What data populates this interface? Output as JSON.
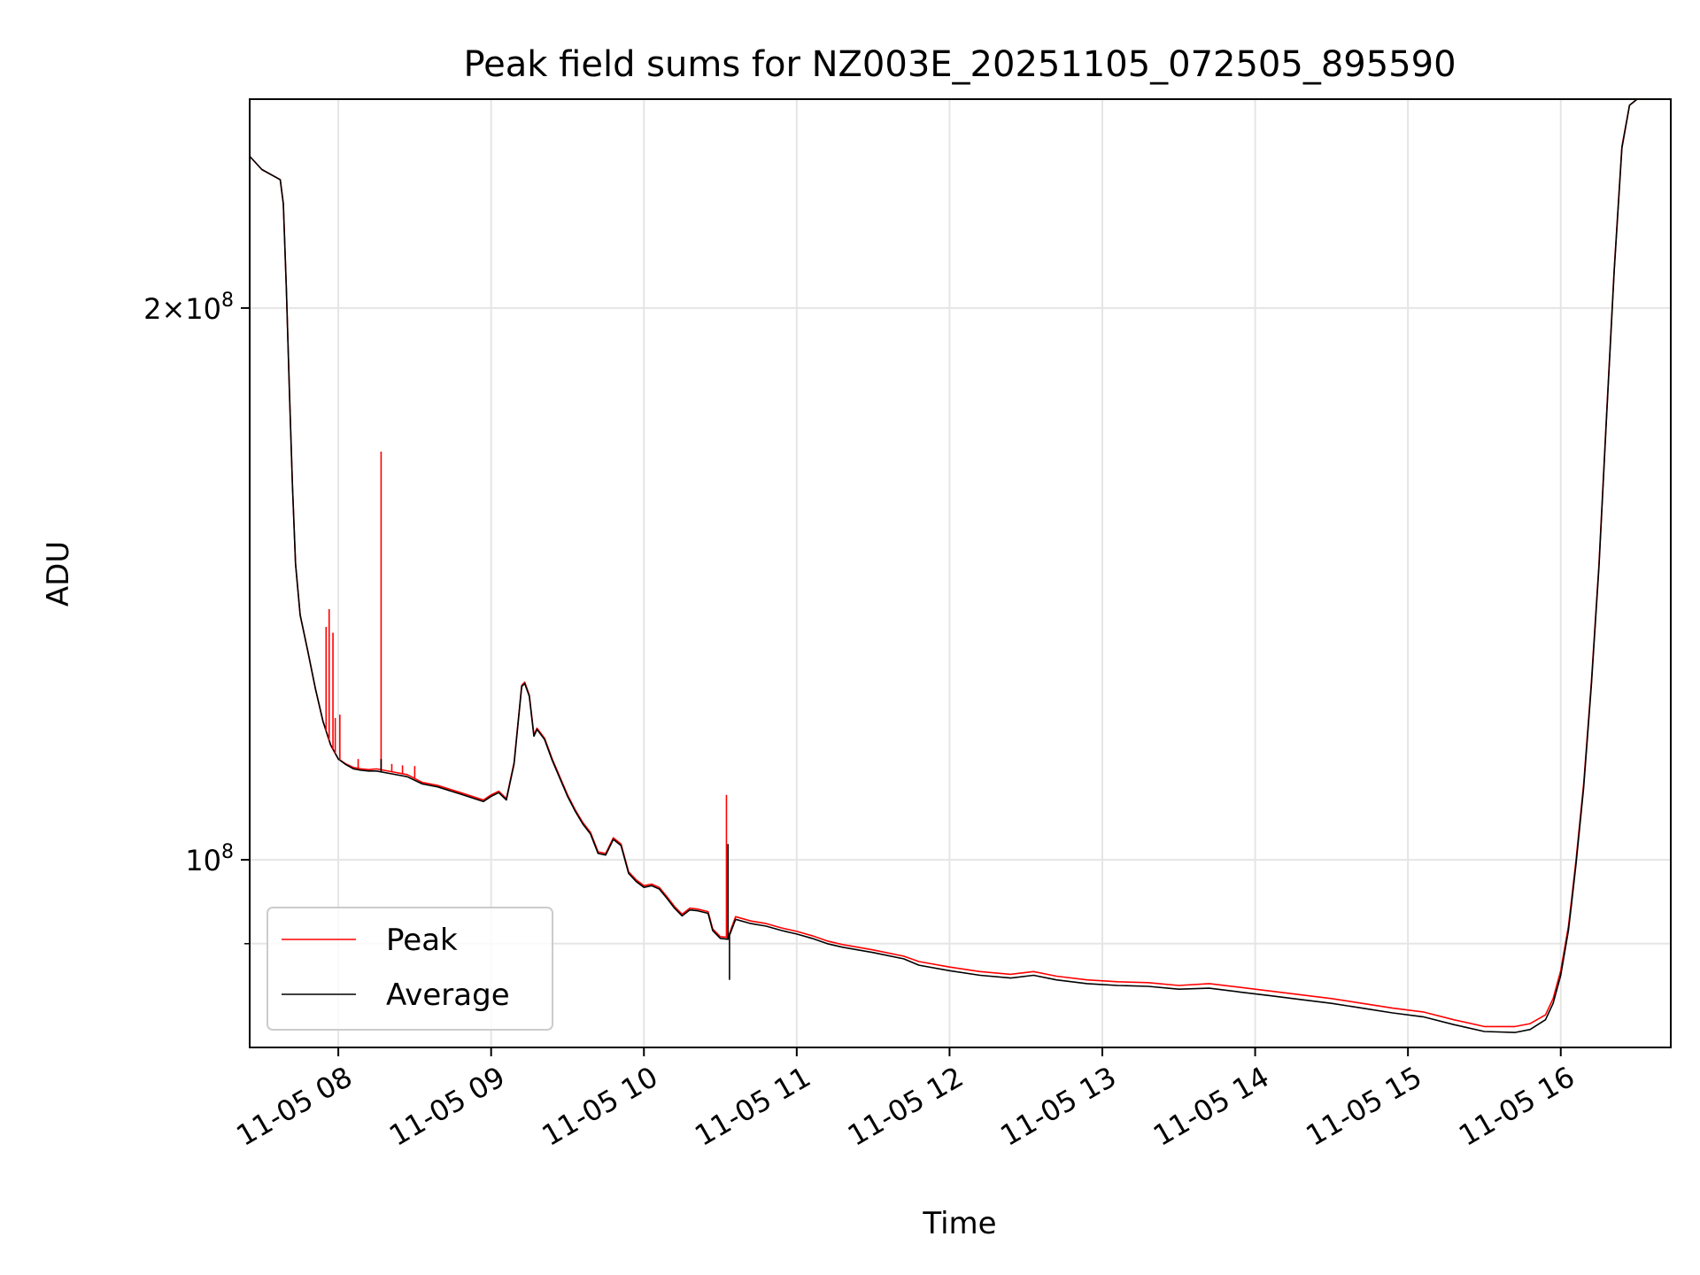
{
  "chart_data": {
    "type": "line",
    "title": "Peak field sums for NZ003E_20251105_072505_895590",
    "xlabel": "Time",
    "ylabel": "ADU",
    "x_tick_labels": [
      "11-05 08",
      "11-05 09",
      "11-05 10",
      "11-05 11",
      "11-05 12",
      "11-05 13",
      "11-05 14",
      "11-05 15",
      "11-05 16"
    ],
    "x_tick_hours": [
      8,
      9,
      10,
      11,
      12,
      13,
      14,
      15,
      16
    ],
    "xlim_hours": [
      7.42,
      16.72
    ],
    "y_scale": "log",
    "ylim": [
      79000000,
      260000000
    ],
    "y_major_ticks": [
      100000000,
      200000000
    ],
    "y_major_tick_labels": [
      {
        "mantissa": "",
        "base": "10",
        "exp": "8"
      },
      {
        "mantissa": "2×",
        "base": "10",
        "exp": "8"
      }
    ],
    "y_minor_ticks": [
      90000000
    ],
    "grid": true,
    "legend_position": "lower-left",
    "series": [
      {
        "name": "Peak",
        "color": "#ff0000",
        "points": [
          [
            7.42,
            242000000
          ],
          [
            7.5,
            238000000
          ],
          [
            7.62,
            235000000
          ],
          [
            7.64,
            228000000
          ],
          [
            7.66,
            205000000
          ],
          [
            7.68,
            180000000
          ],
          [
            7.7,
            160000000
          ],
          [
            7.72,
            145000000
          ],
          [
            7.75,
            136000000
          ],
          [
            7.8,
            130000000
          ],
          [
            7.85,
            124000000
          ],
          [
            7.9,
            119000000
          ],
          [
            7.95,
            115500000
          ],
          [
            8.0,
            113500000
          ],
          [
            8.05,
            112800000
          ],
          [
            8.1,
            112300000
          ],
          [
            8.15,
            112100000
          ],
          [
            8.2,
            112000000
          ],
          [
            8.25,
            112100000
          ],
          [
            8.35,
            111700000
          ],
          [
            8.45,
            111300000
          ],
          [
            8.55,
            110200000
          ],
          [
            8.65,
            109800000
          ],
          [
            8.8,
            108800000
          ],
          [
            8.95,
            107800000
          ],
          [
            9.0,
            108500000
          ],
          [
            9.05,
            109000000
          ],
          [
            9.1,
            108000000
          ],
          [
            9.15,
            113000000
          ],
          [
            9.2,
            124500000
          ],
          [
            9.22,
            125000000
          ],
          [
            9.25,
            123000000
          ],
          [
            9.28,
            117000000
          ],
          [
            9.3,
            118000000
          ],
          [
            9.35,
            116500000
          ],
          [
            9.4,
            113500000
          ],
          [
            9.5,
            108500000
          ],
          [
            9.55,
            106500000
          ],
          [
            9.6,
            104800000
          ],
          [
            9.65,
            103500000
          ],
          [
            9.7,
            101000000
          ],
          [
            9.75,
            100800000
          ],
          [
            9.8,
            102800000
          ],
          [
            9.85,
            102000000
          ],
          [
            9.9,
            98500000
          ],
          [
            9.95,
            97500000
          ],
          [
            10.0,
            96800000
          ],
          [
            10.05,
            97000000
          ],
          [
            10.1,
            96600000
          ],
          [
            10.15,
            95500000
          ],
          [
            10.2,
            94300000
          ],
          [
            10.25,
            93400000
          ],
          [
            10.3,
            94100000
          ],
          [
            10.35,
            94000000
          ],
          [
            10.42,
            93700000
          ],
          [
            10.45,
            91700000
          ],
          [
            10.5,
            90800000
          ],
          [
            10.55,
            90700000
          ],
          [
            10.6,
            93100000
          ],
          [
            10.7,
            92600000
          ],
          [
            10.8,
            92300000
          ],
          [
            10.9,
            91800000
          ],
          [
            11.0,
            91400000
          ],
          [
            11.1,
            90900000
          ],
          [
            11.2,
            90300000
          ],
          [
            11.3,
            89900000
          ],
          [
            11.5,
            89300000
          ],
          [
            11.7,
            88600000
          ],
          [
            11.8,
            88000000
          ],
          [
            12.0,
            87400000
          ],
          [
            12.2,
            86900000
          ],
          [
            12.4,
            86600000
          ],
          [
            12.55,
            86900000
          ],
          [
            12.7,
            86400000
          ],
          [
            12.9,
            86000000
          ],
          [
            13.1,
            85800000
          ],
          [
            13.3,
            85700000
          ],
          [
            13.5,
            85400000
          ],
          [
            13.7,
            85600000
          ],
          [
            13.9,
            85200000
          ],
          [
            14.1,
            84800000
          ],
          [
            14.3,
            84400000
          ],
          [
            14.5,
            84000000
          ],
          [
            14.7,
            83500000
          ],
          [
            14.9,
            83000000
          ],
          [
            15.1,
            82600000
          ],
          [
            15.3,
            81800000
          ],
          [
            15.5,
            81100000
          ],
          [
            15.7,
            81100000
          ],
          [
            15.8,
            81400000
          ],
          [
            15.9,
            82300000
          ],
          [
            15.95,
            84000000
          ],
          [
            16.0,
            87000000
          ],
          [
            16.05,
            92000000
          ],
          [
            16.07,
            95000000
          ],
          [
            16.1,
            100000000
          ],
          [
            16.15,
            110000000
          ],
          [
            16.2,
            125000000
          ],
          [
            16.25,
            145000000
          ],
          [
            16.3,
            175000000
          ],
          [
            16.35,
            210000000
          ],
          [
            16.4,
            245000000
          ],
          [
            16.45,
            258000000
          ],
          [
            16.5,
            260000000
          ],
          [
            16.72,
            260000000
          ]
        ]
      },
      {
        "name": "Average",
        "color": "#000000",
        "points": [
          [
            7.42,
            242000000
          ],
          [
            7.5,
            238000000
          ],
          [
            7.62,
            235000000
          ],
          [
            7.64,
            228000000
          ],
          [
            7.66,
            205000000
          ],
          [
            7.68,
            180000000
          ],
          [
            7.7,
            160000000
          ],
          [
            7.72,
            145000000
          ],
          [
            7.75,
            136000000
          ],
          [
            7.8,
            130000000
          ],
          [
            7.85,
            124000000
          ],
          [
            7.9,
            119000000
          ],
          [
            7.95,
            115500000
          ],
          [
            8.0,
            113500000
          ],
          [
            8.05,
            112700000
          ],
          [
            8.1,
            112100000
          ],
          [
            8.15,
            111900000
          ],
          [
            8.2,
            111800000
          ],
          [
            8.25,
            111800000
          ],
          [
            8.35,
            111400000
          ],
          [
            8.45,
            111000000
          ],
          [
            8.55,
            110000000
          ],
          [
            8.65,
            109600000
          ],
          [
            8.8,
            108600000
          ],
          [
            8.95,
            107600000
          ],
          [
            9.0,
            108300000
          ],
          [
            9.05,
            108800000
          ],
          [
            9.1,
            107800000
          ],
          [
            9.15,
            112800000
          ],
          [
            9.2,
            124300000
          ],
          [
            9.22,
            124800000
          ],
          [
            9.25,
            122800000
          ],
          [
            9.28,
            116800000
          ],
          [
            9.3,
            117800000
          ],
          [
            9.35,
            116300000
          ],
          [
            9.4,
            113300000
          ],
          [
            9.5,
            108300000
          ],
          [
            9.55,
            106300000
          ],
          [
            9.6,
            104600000
          ],
          [
            9.65,
            103300000
          ],
          [
            9.7,
            100800000
          ],
          [
            9.75,
            100600000
          ],
          [
            9.8,
            102600000
          ],
          [
            9.85,
            101800000
          ],
          [
            9.9,
            98300000
          ],
          [
            9.95,
            97300000
          ],
          [
            10.0,
            96600000
          ],
          [
            10.05,
            96800000
          ],
          [
            10.1,
            96400000
          ],
          [
            10.15,
            95300000
          ],
          [
            10.2,
            94100000
          ],
          [
            10.25,
            93200000
          ],
          [
            10.3,
            93900000
          ],
          [
            10.35,
            93800000
          ],
          [
            10.42,
            93500000
          ],
          [
            10.45,
            91500000
          ],
          [
            10.5,
            90600000
          ],
          [
            10.55,
            90500000
          ],
          [
            10.6,
            92800000
          ],
          [
            10.7,
            92300000
          ],
          [
            10.8,
            92000000
          ],
          [
            10.9,
            91500000
          ],
          [
            11.0,
            91100000
          ],
          [
            11.1,
            90600000
          ],
          [
            11.2,
            90000000
          ],
          [
            11.3,
            89600000
          ],
          [
            11.5,
            89000000
          ],
          [
            11.7,
            88300000
          ],
          [
            11.8,
            87600000
          ],
          [
            12.0,
            87000000
          ],
          [
            12.2,
            86500000
          ],
          [
            12.4,
            86200000
          ],
          [
            12.55,
            86500000
          ],
          [
            12.7,
            86000000
          ],
          [
            12.9,
            85600000
          ],
          [
            13.1,
            85400000
          ],
          [
            13.3,
            85300000
          ],
          [
            13.5,
            85000000
          ],
          [
            13.7,
            85100000
          ],
          [
            13.9,
            84700000
          ],
          [
            14.1,
            84300000
          ],
          [
            14.3,
            83900000
          ],
          [
            14.5,
            83500000
          ],
          [
            14.7,
            83000000
          ],
          [
            14.9,
            82500000
          ],
          [
            15.1,
            82100000
          ],
          [
            15.3,
            81300000
          ],
          [
            15.5,
            80600000
          ],
          [
            15.7,
            80500000
          ],
          [
            15.8,
            80800000
          ],
          [
            15.9,
            81800000
          ],
          [
            15.95,
            83500000
          ],
          [
            16.0,
            86500000
          ],
          [
            16.05,
            91500000
          ],
          [
            16.07,
            94500000
          ],
          [
            16.1,
            99500000
          ],
          [
            16.15,
            109500000
          ],
          [
            16.2,
            124500000
          ],
          [
            16.25,
            144500000
          ],
          [
            16.3,
            174500000
          ],
          [
            16.35,
            209500000
          ],
          [
            16.4,
            244500000
          ],
          [
            16.45,
            258000000
          ],
          [
            16.5,
            260000000
          ],
          [
            16.72,
            260000000
          ]
        ]
      }
    ],
    "spikes": [
      {
        "series": "Peak",
        "x": 7.92,
        "y": 134000000
      },
      {
        "series": "Peak",
        "x": 7.94,
        "y": 137000000
      },
      {
        "series": "Peak",
        "x": 7.965,
        "y": 133000000
      },
      {
        "series": "Peak",
        "x": 7.98,
        "y": 119500000
      },
      {
        "series": "Peak",
        "x": 8.01,
        "y": 120000000
      },
      {
        "series": "Peak",
        "x": 8.13,
        "y": 113500000
      },
      {
        "series": "Peak",
        "x": 8.28,
        "y": 167000000
      },
      {
        "series": "Peak",
        "x": 8.35,
        "y": 112800000
      },
      {
        "series": "Peak",
        "x": 8.42,
        "y": 112600000
      },
      {
        "series": "Peak",
        "x": 8.5,
        "y": 112500000
      },
      {
        "series": "Peak",
        "x": 10.54,
        "y": 108500000
      },
      {
        "series": "Average",
        "x": 8.28,
        "y": 113500000
      },
      {
        "series": "Average",
        "x": 10.55,
        "y": 102000000
      },
      {
        "series": "Average",
        "x": 10.56,
        "y": 86000000
      }
    ]
  }
}
